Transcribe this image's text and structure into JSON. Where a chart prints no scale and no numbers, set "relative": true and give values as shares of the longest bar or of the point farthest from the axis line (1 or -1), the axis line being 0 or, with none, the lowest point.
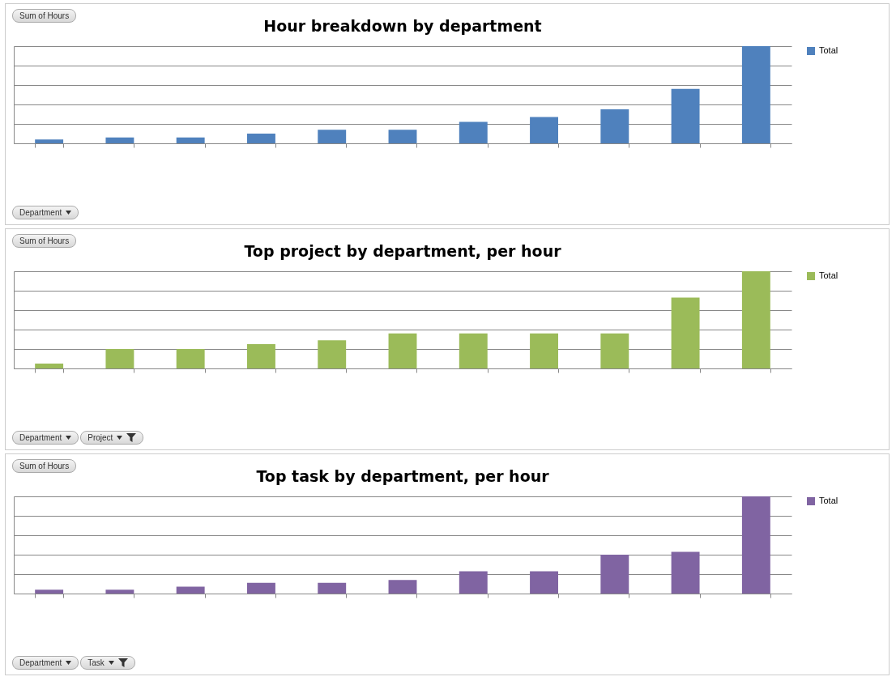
{
  "chart_data": [
    {
      "type": "bar",
      "title": "Hour breakdown by department",
      "categories": [
        null,
        null,
        null,
        null,
        null,
        null,
        null,
        null,
        null,
        null,
        null
      ],
      "relative": true,
      "grid": true,
      "legend": "right",
      "annotations": [
        "Sum of Hours",
        "Department"
      ],
      "series": [
        {
          "name": "Total",
          "color": "#4f81bd",
          "values": [
            0.04,
            0.06,
            0.06,
            0.1,
            0.14,
            0.14,
            0.22,
            0.27,
            0.35,
            0.56,
            1
          ]
        }
      ]
    },
    {
      "type": "bar",
      "title": "Top project by department, per hour",
      "categories": [
        null,
        null,
        null,
        null,
        null,
        null,
        null,
        null,
        null,
        null,
        null
      ],
      "relative": true,
      "grid": true,
      "legend": "right",
      "annotations": [
        "Sum of Hours",
        "Department",
        "Project"
      ],
      "series": [
        {
          "name": "Total",
          "color": "#9bbb59",
          "values": [
            0.05,
            0.2,
            0.2,
            0.25,
            0.29,
            0.36,
            0.36,
            0.36,
            0.36,
            0.73,
            1
          ]
        }
      ]
    },
    {
      "type": "bar",
      "title": "Top task by department, per hour",
      "categories": [
        null,
        null,
        null,
        null,
        null,
        null,
        null,
        null,
        null,
        null,
        null
      ],
      "relative": true,
      "grid": true,
      "legend": "right",
      "annotations": [
        "Sum of Hours",
        "Department",
        "Task"
      ],
      "series": [
        {
          "name": "Total",
          "color": "#8064a2",
          "values": [
            0.04,
            0.04,
            0.07,
            0.11,
            0.11,
            0.14,
            0.23,
            0.23,
            0.4,
            0.43,
            1
          ]
        }
      ]
    }
  ]
}
